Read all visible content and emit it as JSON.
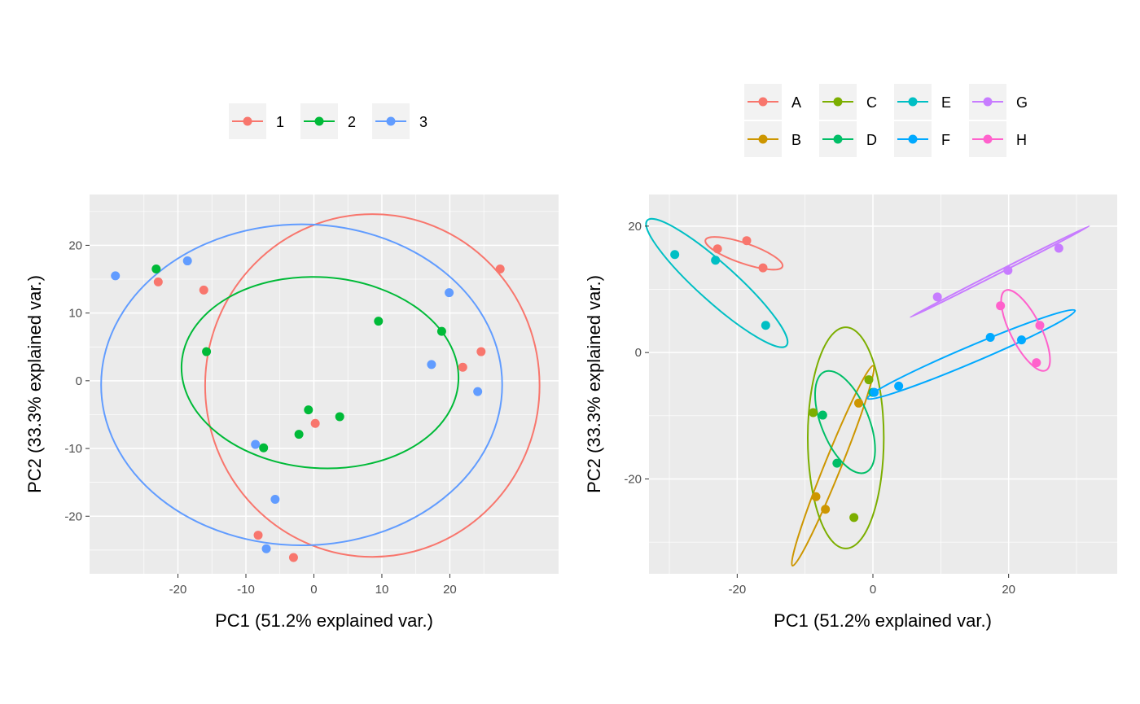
{
  "chart_data": [
    {
      "type": "scatter",
      "xlabel": "PC1 (51.2% explained var.)",
      "ylabel": "PC2 (33.3% explained var.)",
      "xlim": [
        -33,
        36
      ],
      "ylim": [
        -28.5,
        27.5
      ],
      "x_ticks": [
        -20,
        -10,
        0,
        10,
        20
      ],
      "y_ticks": [
        -20,
        -10,
        0,
        10,
        20
      ],
      "grid": true,
      "legend_position": "top",
      "series": [
        {
          "name": "1",
          "color": "#F8766D",
          "points": [
            [
              -22.9,
              14.6
            ],
            [
              -16.2,
              13.4
            ],
            [
              27.4,
              16.5
            ],
            [
              24.6,
              4.3
            ],
            [
              21.9,
              2.0
            ],
            [
              0.2,
              -6.3
            ],
            [
              -8.2,
              -22.8
            ],
            [
              -3.0,
              -26.1
            ]
          ],
          "ellipse": {
            "center": [
              8.6,
              -0.7
            ],
            "rx": 24.6,
            "ry": 25.3,
            "angle": 0
          }
        },
        {
          "name": "2",
          "color": "#00BA38",
          "points": [
            [
              -23.2,
              16.5
            ],
            [
              -15.8,
              4.3
            ],
            [
              9.5,
              8.8
            ],
            [
              18.8,
              7.3
            ],
            [
              -0.8,
              -4.3
            ],
            [
              3.8,
              -5.3
            ],
            [
              -2.2,
              -7.9
            ],
            [
              -7.4,
              -9.9
            ]
          ],
          "ellipse": {
            "center": [
              0.9,
              1.2
            ],
            "rx": 20.4,
            "ry": 14.1,
            "angle": -4
          }
        },
        {
          "name": "3",
          "color": "#619CFF",
          "points": [
            [
              -29.2,
              15.5
            ],
            [
              -18.6,
              17.7
            ],
            [
              19.9,
              13.0
            ],
            [
              17.3,
              2.4
            ],
            [
              24.1,
              -1.6
            ],
            [
              -8.6,
              -9.4
            ],
            [
              -5.7,
              -17.5
            ],
            [
              -7.0,
              -24.8
            ]
          ],
          "ellipse": {
            "center": [
              -1.8,
              -0.6
            ],
            "rx": 29.5,
            "ry": 23.7,
            "angle": 0
          }
        }
      ]
    },
    {
      "type": "scatter",
      "xlabel": "PC1 (51.2% explained var.)",
      "ylabel": "PC2 (33.3% explained var.)",
      "xlim": [
        -33,
        36
      ],
      "ylim": [
        -35,
        25
      ],
      "x_ticks": [
        -20,
        0,
        20
      ],
      "y_ticks": [
        -20,
        0,
        20
      ],
      "grid": true,
      "legend_position": "top",
      "series": [
        {
          "name": "A",
          "color": "#F8766D",
          "points": [
            [
              -22.9,
              16.4
            ],
            [
              -18.6,
              17.7
            ],
            [
              -16.2,
              13.4
            ]
          ],
          "ellipse": {
            "center": [
              -19.0,
              15.7
            ],
            "rx": 6.0,
            "ry": 1.6,
            "angle": -19
          }
        },
        {
          "name": "B",
          "color": "#CD9600",
          "points": [
            [
              -8.4,
              -22.8
            ],
            [
              -7.0,
              -24.8
            ],
            [
              -2.1,
              -8.0
            ]
          ],
          "ellipse": {
            "center": [
              -5.9,
              -17.9
            ],
            "rx": 15.9,
            "ry": 1.3,
            "angle": 68
          }
        },
        {
          "name": "C",
          "color": "#7CAE00",
          "points": [
            [
              -8.8,
              -9.5
            ],
            [
              -2.8,
              -26.1
            ],
            [
              -0.6,
              -4.3
            ]
          ],
          "ellipse": {
            "center": [
              -4.0,
              -13.5
            ],
            "rx": 5.6,
            "ry": 17.5,
            "angle": 0
          }
        },
        {
          "name": "D",
          "color": "#00BE67",
          "points": [
            [
              -7.4,
              -9.9
            ],
            [
              -5.3,
              -17.5
            ],
            [
              0.0,
              -6.3
            ]
          ],
          "ellipse": {
            "center": [
              -4.1,
              -11.0
            ],
            "rx": 3.5,
            "ry": 8.6,
            "angle": 22
          }
        },
        {
          "name": "E",
          "color": "#00BFC4",
          "points": [
            [
              -29.2,
              15.5
            ],
            [
              -23.2,
              14.6
            ],
            [
              -15.8,
              4.3
            ]
          ],
          "ellipse": {
            "center": [
              -23.0,
              11.0
            ],
            "rx": 13.8,
            "ry": 3.0,
            "angle": -42
          }
        },
        {
          "name": "F",
          "color": "#00A9FF",
          "points": [
            [
              0.2,
              -6.3
            ],
            [
              3.8,
              -5.3
            ],
            [
              17.3,
              2.4
            ],
            [
              21.9,
              2.0
            ]
          ],
          "ellipse": {
            "center": [
              14.5,
              -0.3
            ],
            "rx": 16.6,
            "ry": 1.3,
            "angle": 23
          }
        },
        {
          "name": "G",
          "color": "#C77CFF",
          "points": [
            [
              9.5,
              8.8
            ],
            [
              19.9,
              13.0
            ],
            [
              27.4,
              16.5
            ]
          ],
          "ellipse": {
            "center": [
              18.7,
              12.8
            ],
            "rx": 14.8,
            "ry": 0.2,
            "angle": 27
          }
        },
        {
          "name": "H",
          "color": "#FF61CC",
          "points": [
            [
              18.8,
              7.4
            ],
            [
              24.1,
              -1.6
            ],
            [
              24.6,
              4.3
            ]
          ],
          "ellipse": {
            "center": [
              22.5,
              3.5
            ],
            "rx": 6.6,
            "ry": 2.4,
            "angle": -63
          }
        }
      ]
    }
  ]
}
